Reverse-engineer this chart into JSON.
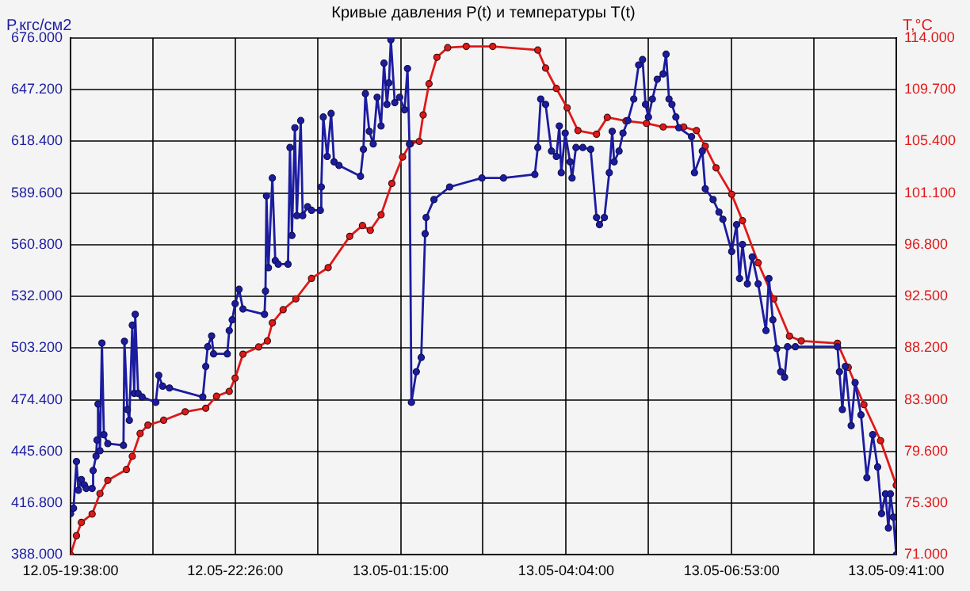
{
  "chart_data": {
    "type": "line",
    "title": "Кривые давления P(t) и температуры T(t)",
    "ylabel": "P,кгс/см2",
    "y2label": "T,°C",
    "xlim": [
      "--05-12T19:38",
      "--05-13T09:41"
    ],
    "xticks": [
      {
        "value": "--05-12T19:38",
        "label": "12.05-19:38:00"
      },
      {
        "value": "--05-12T21:02",
        "label": null
      },
      {
        "value": "--05-12T22:26",
        "label": "12.05-22:26:00"
      },
      {
        "value": "--05-12T23:50",
        "label": null
      },
      {
        "value": "--05-13T01:15",
        "label": "13.05-01:15:00"
      },
      {
        "value": "--05-13T02:39",
        "label": null
      },
      {
        "value": "--05-13T04:04",
        "label": "13.05-04:04:00"
      },
      {
        "value": "--05-13T05:28",
        "label": null
      },
      {
        "value": "--05-13T06:53",
        "label": "13.05-06:53:00"
      },
      {
        "value": "--05-13T08:17",
        "label": null
      },
      {
        "value": "--05-13T09:41",
        "label": "13.05-09:41:00"
      }
    ],
    "ylim": [
      388,
      676
    ],
    "yticks": [
      {
        "value": 388,
        "label": "388.000"
      },
      {
        "value": 416.8,
        "label": "416.800"
      },
      {
        "value": 445.6,
        "label": "445.600"
      },
      {
        "value": 474.4,
        "label": "474.400"
      },
      {
        "value": 503.2,
        "label": "503.200"
      },
      {
        "value": 532,
        "label": "532.000"
      },
      {
        "value": 560.8,
        "label": "560.800"
      },
      {
        "value": 589.6,
        "label": "589.600"
      },
      {
        "value": 618.4,
        "label": "618.400"
      },
      {
        "value": 647.2,
        "label": "647.200"
      },
      {
        "value": 676,
        "label": "676.000"
      }
    ],
    "y2lim": [
      71,
      114
    ],
    "y2ticks": [
      {
        "value": 71,
        "label": "71.000"
      },
      {
        "value": 75.3,
        "label": "75.300"
      },
      {
        "value": 79.6,
        "label": "79.600"
      },
      {
        "value": 83.9,
        "label": "83.900"
      },
      {
        "value": 88.2,
        "label": "88.200"
      },
      {
        "value": 92.5,
        "label": "92.500"
      },
      {
        "value": 96.8,
        "label": "96.800"
      },
      {
        "value": 101.1,
        "label": "101.100"
      },
      {
        "value": 105.4,
        "label": "105.400"
      },
      {
        "value": 109.7,
        "label": "109.700"
      },
      {
        "value": 114,
        "label": "114.000"
      }
    ],
    "grid": true,
    "marker": "circle",
    "line_style": "solid",
    "series": [
      {
        "color": "#1c1ca0",
        "axis": "y",
        "x": [
          "--05-12T19:38",
          "--05-12T19:41",
          "--05-12T19:44",
          "--05-12T19:46",
          "--05-12T19:49",
          "--05-12T19:52",
          "--05-12T19:54",
          "--05-12T20:00",
          "--05-12T20:01",
          "--05-12T20:04",
          "--05-12T20:05",
          "--05-12T20:06",
          "--05-12T20:08",
          "--05-12T20:10",
          "--05-12T20:12",
          "--05-12T20:16",
          "--05-12T20:32",
          "--05-12T20:33",
          "--05-12T20:36",
          "--05-12T20:38",
          "--05-12T20:41",
          "--05-12T20:43",
          "--05-12T20:44",
          "--05-12T20:47",
          "--05-12T20:51",
          "--05-12T21:05",
          "--05-12T21:08",
          "--05-12T21:12",
          "--05-12T21:19",
          "--05-12T21:53",
          "--05-12T21:56",
          "--05-12T21:58",
          "--05-12T22:02",
          "--05-12T22:04",
          "--05-12T22:18",
          "--05-12T22:20",
          "--05-12T22:23",
          "--05-12T22:26",
          "--05-12T22:30",
          "--05-12T22:34",
          "--05-12T22:56",
          "--05-12T22:57",
          "--05-12T22:58",
          "--05-12T23:00",
          "--05-12T23:04",
          "--05-12T23:07",
          "--05-12T23:10",
          "--05-12T23:20",
          "--05-12T23:22",
          "--05-12T23:24",
          "--05-12T23:27",
          "--05-12T23:29",
          "--05-12T23:33",
          "--05-12T23:35",
          "--05-12T23:40",
          "--05-12T23:44",
          "--05-12T23:53",
          "--05-12T23:54",
          "--05-12T23:56",
          "--05-13T00:00",
          "--05-13T00:04",
          "--05-13T00:07",
          "--05-13T00:12",
          "--05-13T00:34",
          "--05-13T00:37",
          "--05-13T00:39",
          "--05-13T00:43",
          "--05-13T00:47",
          "--05-13T00:51",
          "--05-13T00:55",
          "--05-13T00:58",
          "--05-13T01:01",
          "--05-13T01:03",
          "--05-13T01:05",
          "--05-13T01:09",
          "--05-13T01:14",
          "--05-13T01:19",
          "--05-13T01:22",
          "--05-13T01:24",
          "--05-13T01:26",
          "--05-13T01:31",
          "--05-13T01:36",
          "--05-13T01:40",
          "--05-13T01:41",
          "--05-13T01:49",
          "--05-13T02:05",
          "--05-13T02:38",
          "--05-13T03:00",
          "--05-13T03:32",
          "--05-13T03:35",
          "--05-13T03:38",
          "--05-13T03:43",
          "--05-13T03:49",
          "--05-13T03:54",
          "--05-13T03:57",
          "--05-13T03:59",
          "--05-13T04:03",
          "--05-13T04:08",
          "--05-13T04:10",
          "--05-13T04:14",
          "--05-13T04:21",
          "--05-13T04:29",
          "--05-13T04:35",
          "--05-13T04:38",
          "--05-13T04:43",
          "--05-13T04:48",
          "--05-13T04:51",
          "--05-13T04:53",
          "--05-13T04:58",
          "--05-13T05:02",
          "--05-13T05:07",
          "--05-13T05:13",
          "--05-13T05:18",
          "--05-13T05:22",
          "--05-13T05:25",
          "--05-13T05:28",
          "--05-13T05:32",
          "--05-13T05:37",
          "--05-13T05:43",
          "--05-13T05:46",
          "--05-13T05:49",
          "--05-13T05:52",
          "--05-13T05:56",
          "--05-13T05:59",
          "--05-13T06:12",
          "--05-13T06:15",
          "--05-13T06:23",
          "--05-13T06:26",
          "--05-13T06:34",
          "--05-13T06:40",
          "--05-13T06:44",
          "--05-13T06:53",
          "--05-13T06:58",
          "--05-13T07:01",
          "--05-13T07:04",
          "--05-13T07:09",
          "--05-13T07:14",
          "--05-13T07:20",
          "--05-13T07:28",
          "--05-13T07:31",
          "--05-13T07:35",
          "--05-13T07:39",
          "--05-13T07:43",
          "--05-13T07:47",
          "--05-13T07:50",
          "--05-13T07:58",
          "--05-13T08:41",
          "--05-13T08:43",
          "--05-13T08:46",
          "--05-13T08:49",
          "--05-13T08:55",
          "--05-13T08:59",
          "--05-13T09:05",
          "--05-13T09:11",
          "--05-13T09:17",
          "--05-13T09:22",
          "--05-13T09:26",
          "--05-13T09:30",
          "--05-13T09:33",
          "--05-13T09:35",
          "--05-13T09:38",
          "--05-13T09:41"
        ],
        "values": [
          411,
          414,
          440,
          424,
          430,
          427,
          425,
          425,
          435,
          443,
          452,
          472,
          446,
          506,
          455,
          450,
          449,
          507,
          469,
          463,
          516,
          478,
          522,
          478,
          476,
          473,
          488,
          482,
          481,
          476,
          493,
          504,
          510,
          500,
          500,
          513,
          519,
          528,
          536,
          525,
          522,
          535,
          588,
          548,
          598,
          552,
          550,
          550,
          615,
          566,
          626,
          577,
          630,
          577,
          582,
          580,
          580,
          593,
          632,
          610,
          634,
          607,
          605,
          599,
          614,
          645,
          624,
          617,
          643,
          627,
          662,
          639,
          651,
          675,
          640,
          643,
          636,
          659,
          617,
          473,
          490,
          498,
          567,
          576,
          586,
          593,
          598,
          598,
          600,
          615,
          642,
          639,
          613,
          610,
          627,
          601,
          623,
          607,
          598,
          615,
          615,
          614,
          576,
          572,
          576,
          601,
          624,
          607,
          613,
          623,
          630,
          642,
          661,
          664,
          639,
          632,
          642,
          653,
          656,
          667,
          642,
          639,
          632,
          626,
          621,
          601,
          613,
          592,
          586,
          579,
          575,
          557,
          572,
          542,
          561,
          539,
          554,
          539,
          513,
          542,
          519,
          503,
          490,
          487,
          504,
          504,
          504,
          490,
          469,
          493,
          460,
          484,
          466,
          431,
          455,
          437,
          411,
          422,
          403,
          422,
          409,
          388
        ]
      },
      {
        "color": "#e01818",
        "axis": "y2",
        "x": [
          "--05-12T19:38",
          "--05-12T19:44",
          "--05-12T19:49",
          "--05-12T20:00",
          "--05-12T20:08",
          "--05-12T20:16",
          "--05-12T20:35",
          "--05-12T20:41",
          "--05-12T20:49",
          "--05-12T20:57",
          "--05-12T21:13",
          "--05-12T21:35",
          "--05-12T21:56",
          "--05-12T22:07",
          "--05-12T22:20",
          "--05-12T22:26",
          "--05-12T22:34",
          "--05-12T22:50",
          "--05-12T22:59",
          "--05-12T23:04",
          "--05-12T23:15",
          "--05-12T23:28",
          "--05-12T23:44",
          "--05-13T00:01",
          "--05-13T00:23",
          "--05-13T00:36",
          "--05-13T00:44",
          "--05-13T00:55",
          "--05-13T01:06",
          "--05-13T01:17",
          "--05-13T01:25",
          "--05-13T01:34",
          "--05-13T01:38",
          "--05-13T01:44",
          "--05-13T01:52",
          "--05-13T02:03",
          "--05-13T02:22",
          "--05-13T02:49",
          "--05-13T03:35",
          "--05-13T03:43",
          "--05-13T03:54",
          "--05-13T04:05",
          "--05-13T04:16",
          "--05-13T04:35",
          "--05-13T04:46",
          "--05-13T05:05",
          "--05-13T05:26",
          "--05-13T05:43",
          "--05-13T06:04",
          "--05-13T06:17",
          "--05-13T06:26",
          "--05-13T06:37",
          "--05-13T06:53",
          "--05-13T07:04",
          "--05-13T07:20",
          "--05-13T07:36",
          "--05-13T07:52",
          "--05-13T08:04",
          "--05-13T08:41",
          "--05-13T08:52",
          "--05-13T09:08",
          "--05-13T09:25",
          "--05-13T09:41"
        ],
        "values": [
          71.0,
          72.6,
          73.7,
          74.4,
          76.1,
          77.2,
          78.1,
          79.2,
          81.1,
          81.8,
          82.2,
          82.9,
          83.2,
          84.2,
          84.6,
          85.7,
          87.7,
          88.3,
          88.8,
          90.3,
          91.4,
          92.3,
          94.0,
          94.9,
          97.5,
          98.4,
          98.0,
          99.3,
          101.9,
          104.1,
          105.2,
          105.4,
          107.6,
          110.2,
          112.4,
          113.2,
          113.3,
          113.3,
          113.0,
          111.5,
          109.8,
          108.2,
          106.3,
          106.0,
          107.4,
          107.1,
          106.9,
          106.6,
          106.6,
          106.3,
          105.0,
          103.2,
          101.0,
          98.8,
          95.3,
          92.3,
          89.2,
          88.8,
          88.6,
          86.6,
          83.5,
          80.5,
          76.8
        ]
      }
    ]
  }
}
